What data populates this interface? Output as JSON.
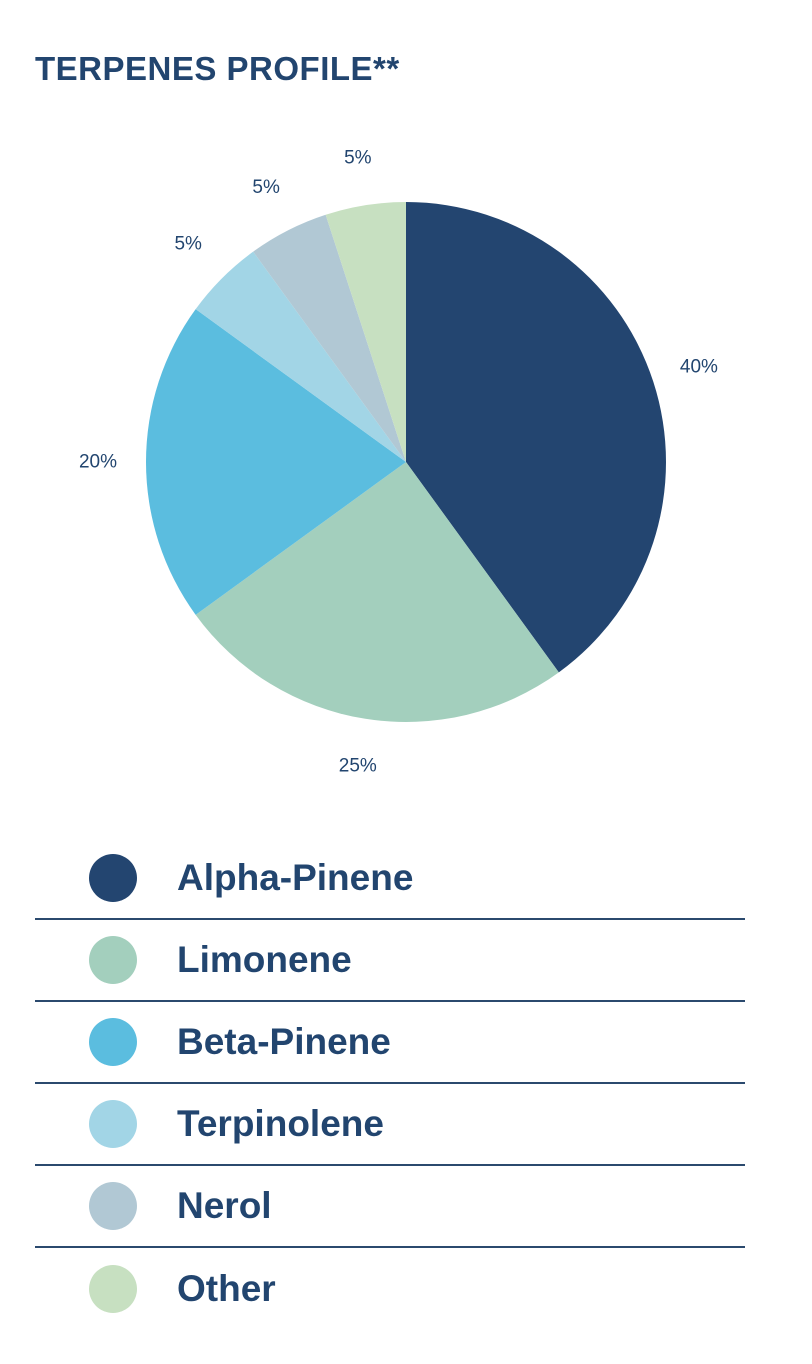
{
  "chart_data": {
    "type": "pie",
    "title": "TERPENES PROFILE**",
    "categories": [
      "Alpha-Pinene",
      "Limonene",
      "Beta-Pinene",
      "Terpinolene",
      "Nerol",
      "Other"
    ],
    "values": [
      40,
      25,
      20,
      5,
      5,
      5
    ],
    "value_labels": [
      "40%",
      "25%",
      "20%",
      "5%",
      "5%",
      "5%"
    ],
    "colors": [
      "#234570",
      "#a3cfbd",
      "#5bbddf",
      "#a2d5e6",
      "#b1c8d4",
      "#c7e0c1"
    ],
    "legend_position": "bottom",
    "start": "top",
    "direction": "clockwise"
  }
}
